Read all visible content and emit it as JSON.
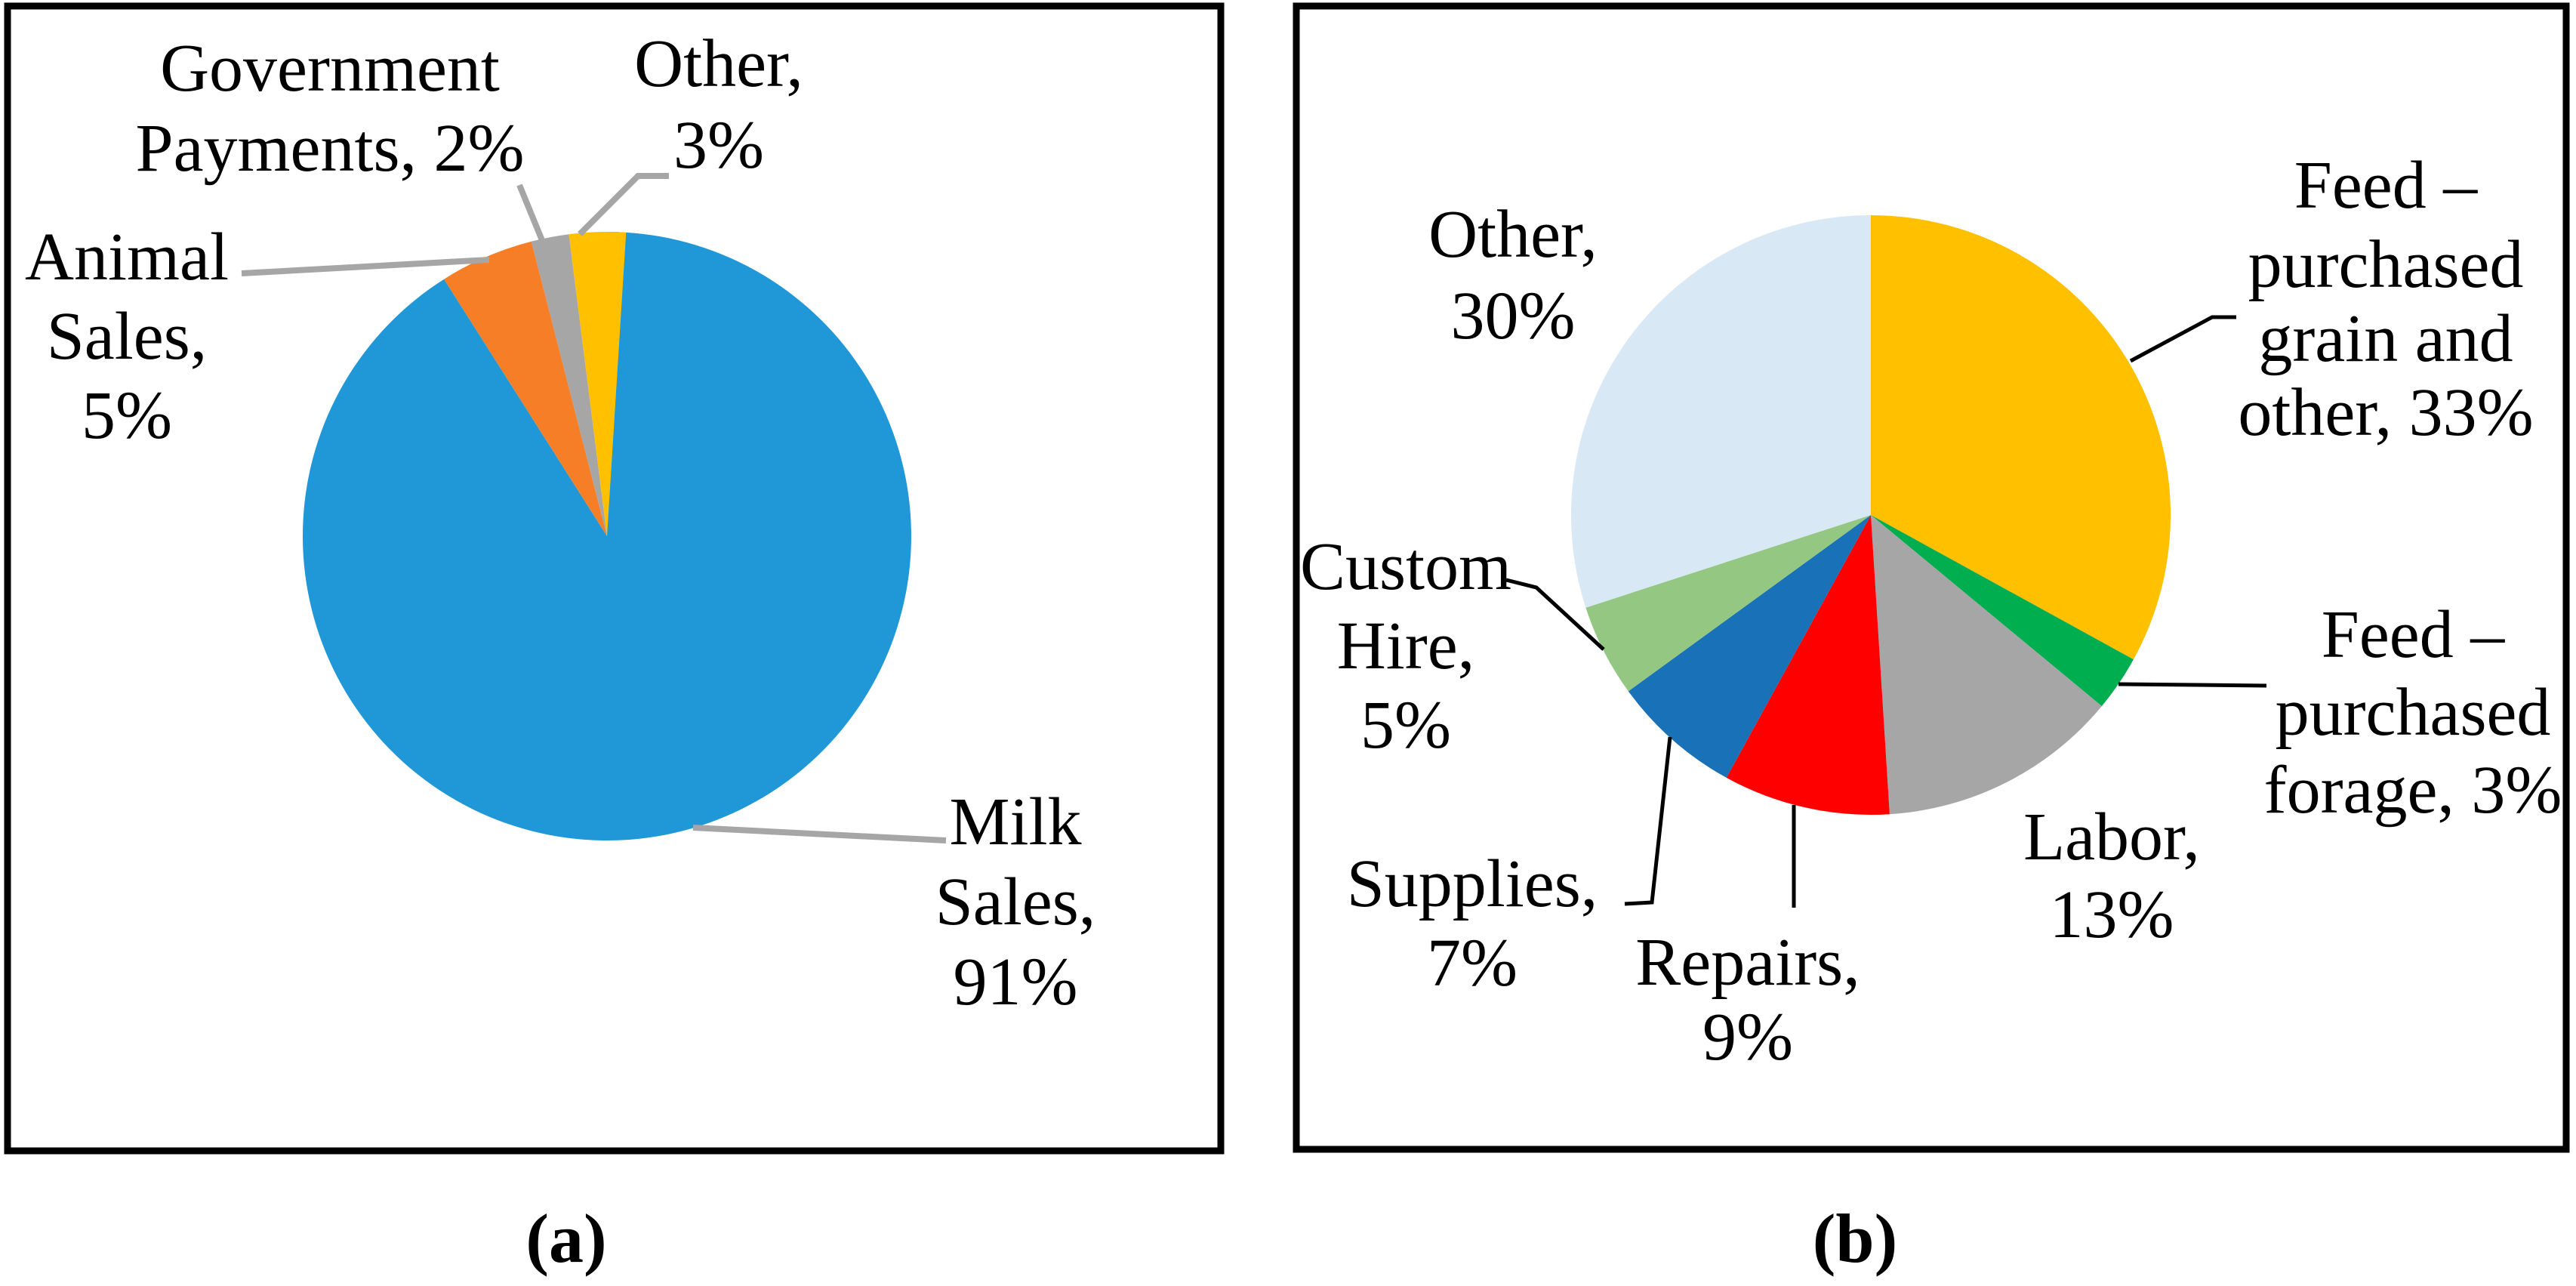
{
  "figure": {
    "background_color": "#ffffff",
    "border_color": "#000000",
    "text_color": "#000000"
  },
  "chart_data": [
    {
      "type": "pie",
      "id": "a",
      "caption": "(a)",
      "start_angle_deg": 0,
      "direction": "clockwise",
      "legend_position": "none",
      "labels_style": "outside-with-leader-lines",
      "leader_line_color": "#A6A6A6",
      "categories": [
        "Milk Sales",
        "Animal Sales",
        "Government Payments",
        "Other"
      ],
      "values": [
        91,
        5,
        2,
        3
      ],
      "slices": [
        {
          "name": "Milk Sales",
          "value_pct": 91,
          "color": "#2098D7",
          "label_lines": [
            "Milk",
            "Sales,",
            "91%"
          ]
        },
        {
          "name": "Animal Sales",
          "value_pct": 5,
          "color": "#F57E27",
          "label_lines": [
            "Animal",
            "Sales,",
            "5%"
          ]
        },
        {
          "name": "Government Payments",
          "value_pct": 2,
          "color": "#A6A6A6",
          "label_lines": [
            "Government",
            "Payments, 2%"
          ]
        },
        {
          "name": "Other",
          "value_pct": 3,
          "color": "#FFC000",
          "label_lines": [
            "Other,",
            "3%"
          ]
        }
      ]
    },
    {
      "type": "pie",
      "id": "b",
      "caption": "(b)",
      "start_angle_deg": 0,
      "direction": "clockwise",
      "legend_position": "none",
      "labels_style": "outside-with-leader-lines",
      "leader_line_color": "#000000",
      "categories": [
        "Feed – purchased grain and other",
        "Feed – purchased forage",
        "Labor",
        "Repairs",
        "Supplies",
        "Custom Hire",
        "Other"
      ],
      "values": [
        33,
        3,
        13,
        9,
        7,
        5,
        30
      ],
      "slices": [
        {
          "name": "Feed - purchased grain and other",
          "value_pct": 33,
          "color": "#FFC000",
          "label_lines": [
            "Feed –",
            "purchased",
            "grain and",
            "other, 33%"
          ]
        },
        {
          "name": "Feed - purchased forage",
          "value_pct": 3,
          "color": "#00AE50",
          "label_lines": [
            "Feed –",
            "purchased",
            "forage, 3%"
          ]
        },
        {
          "name": "Labor",
          "value_pct": 13,
          "color": "#A6A6A6",
          "label_lines": [
            "Labor,",
            "13%"
          ]
        },
        {
          "name": "Repairs",
          "value_pct": 9,
          "color": "#FE0000",
          "label_lines": [
            "Repairs,",
            "9%"
          ]
        },
        {
          "name": "Supplies",
          "value_pct": 7,
          "color": "#1971B8",
          "label_lines": [
            "Supplies,",
            "7%"
          ]
        },
        {
          "name": "Custom Hire",
          "value_pct": 5,
          "color": "#94C882",
          "label_lines": [
            "Custom",
            "Hire,",
            "5%"
          ]
        },
        {
          "name": "Other",
          "value_pct": 30,
          "color": "#D9E8F5",
          "label_lines": [
            "Other,",
            "30%"
          ]
        }
      ]
    }
  ]
}
